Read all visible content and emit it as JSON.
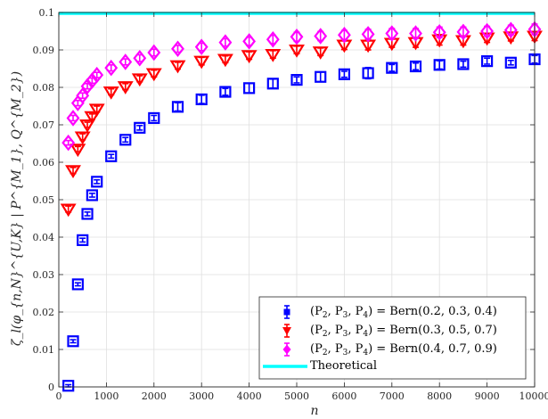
{
  "chart_data": {
    "type": "scatter",
    "title": "",
    "xlabel": "n",
    "ylabel": "ζ_l(φ_{n,N}^{U,K} | P^{M_1}, Q^{M_2})",
    "xlim": [
      0,
      10000
    ],
    "ylim": [
      0,
      0.1
    ],
    "xticks": [
      "0",
      "1000",
      "2000",
      "3000",
      "4000",
      "5000",
      "6000",
      "7000",
      "8000",
      "9000",
      "10000"
    ],
    "yticks": [
      "0",
      "0.01",
      "0.02",
      "0.03",
      "0.04",
      "0.05",
      "0.06",
      "0.07",
      "0.08",
      "0.09",
      "0.1"
    ],
    "grid": true,
    "legend_position": "bottom-right",
    "series": [
      {
        "name": "(P2, P3, P4) = Bern(0.2, 0.3, 0.4)",
        "legend_prefix": "(P",
        "legend_mid": " = Bern(0.2, 0.3, 0.4)",
        "marker": "square",
        "color": "#0000ff",
        "x": [
          200,
          300,
          400,
          500,
          600,
          700,
          800,
          1100,
          1400,
          1700,
          2000,
          2500,
          3000,
          3500,
          4000,
          4500,
          5000,
          5500,
          6000,
          6500,
          7000,
          7500,
          8000,
          8500,
          9000,
          9500,
          10000
        ],
        "y": [
          0.0003,
          0.0122,
          0.0274,
          0.0392,
          0.0462,
          0.0512,
          0.0548,
          0.0616,
          0.066,
          0.0692,
          0.0718,
          0.0748,
          0.0768,
          0.0788,
          0.0798,
          0.081,
          0.082,
          0.0828,
          0.0835,
          0.0838,
          0.0852,
          0.0856,
          0.086,
          0.0862,
          0.087,
          0.0866,
          0.0875
        ],
        "err": [
          0.0003,
          0.0004,
          0.0004,
          0.0005,
          0.0005,
          0.0005,
          0.0005,
          0.0005,
          0.0006,
          0.0006,
          0.0007,
          0.0011,
          0.0011,
          0.0009,
          0.0013,
          0.0012,
          0.0008,
          0.0013,
          0.0008,
          0.0015,
          0.0009,
          0.0009,
          0.0011,
          0.0008,
          0.0008,
          0.0006,
          0.001
        ]
      },
      {
        "name": "(P2, P3, P4) = Bern(0.3, 0.5, 0.7)",
        "legend_prefix": "(P",
        "legend_mid": " = Bern(0.3, 0.5, 0.7)",
        "marker": "triangle-down",
        "color": "#ff0000",
        "x": [
          200,
          300,
          400,
          500,
          600,
          700,
          800,
          1100,
          1400,
          1700,
          2000,
          2500,
          3000,
          3500,
          4000,
          4500,
          5000,
          5500,
          6000,
          6500,
          7000,
          7500,
          8000,
          8500,
          9000,
          9500,
          10000
        ],
        "y": [
          0.0475,
          0.0578,
          0.0635,
          0.0668,
          0.07,
          0.0722,
          0.0742,
          0.0788,
          0.0802,
          0.0823,
          0.0837,
          0.0858,
          0.087,
          0.0875,
          0.0885,
          0.0888,
          0.09,
          0.0895,
          0.0913,
          0.0913,
          0.0918,
          0.092,
          0.0927,
          0.0925,
          0.0932,
          0.0935,
          0.0937
        ],
        "err": [
          0.0008,
          0.0008,
          0.0007,
          0.0008,
          0.0007,
          0.0007,
          0.0008,
          0.0008,
          0.0008,
          0.0008,
          0.0009,
          0.0009,
          0.001,
          0.0009,
          0.001,
          0.001,
          0.001,
          0.001,
          0.0012,
          0.0013,
          0.0011,
          0.0013,
          0.0014,
          0.0012,
          0.0012,
          0.0011,
          0.0012
        ]
      },
      {
        "name": "(P2, P3, P4) = Bern(0.4, 0.7, 0.9)",
        "legend_prefix": "(P",
        "legend_mid": " = Bern(0.4, 0.7, 0.9)",
        "marker": "diamond",
        "color": "#ff00ff",
        "x": [
          200,
          300,
          400,
          500,
          600,
          700,
          800,
          1100,
          1400,
          1700,
          2000,
          2500,
          3000,
          3500,
          4000,
          4500,
          5000,
          5500,
          6000,
          6500,
          7000,
          7500,
          8000,
          8500,
          9000,
          9500,
          10000
        ],
        "y": [
          0.0652,
          0.0718,
          0.0758,
          0.0778,
          0.0803,
          0.0818,
          0.0833,
          0.0852,
          0.0868,
          0.0878,
          0.0893,
          0.0903,
          0.0908,
          0.092,
          0.0923,
          0.0928,
          0.0935,
          0.0937,
          0.094,
          0.0942,
          0.0944,
          0.0944,
          0.0947,
          0.0948,
          0.095,
          0.0953,
          0.0955
        ],
        "err": [
          0.0006,
          0.0007,
          0.0007,
          0.0007,
          0.0007,
          0.0007,
          0.0007,
          0.0008,
          0.0008,
          0.0009,
          0.0009,
          0.0009,
          0.001,
          0.001,
          0.0011,
          0.0011,
          0.0012,
          0.0012,
          0.0012,
          0.0013,
          0.0013,
          0.0013,
          0.0014,
          0.0013,
          0.0013,
          0.0013,
          0.0014
        ]
      },
      {
        "name": "Theoretical",
        "marker": "line",
        "color": "#00ffff",
        "x": [
          0,
          10000
        ],
        "y": [
          0.1,
          0.1
        ]
      }
    ]
  }
}
